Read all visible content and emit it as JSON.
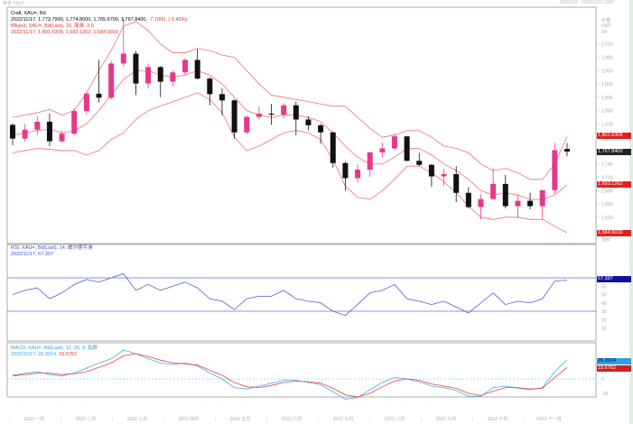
{
  "header": {
    "title": "黄金 XAU=",
    "range": "2022/1/3 - 2022/11/17 GMT"
  },
  "legend": {
    "cndl_name": "Cndl, XAU=, Bd",
    "cndl_values": "2022/11/17, 1,773.7900, 1,774.8000, 1,765.6700, 1,767.8400,",
    "cndl_change": "-7.1000, (-0.40%)",
    "bband_name": "BBand, XAU=, Bd(Last), 20, 简单, 2.0",
    "bband_values": "2022/11/17, 1,801.6309, 1,693.1262, 1,584.9016",
    "rsi_name": "RSI, XAU=, Bd(Last), 14, 威尔德平滑",
    "rsi_values": "2022/11/17, 67.397",
    "macd_name": "MACD, XAU=, Bd(Last), 12, 26, 9, 指数",
    "macd_value": "2022/11/17, 26.3914,",
    "macd_signal": "15.6762"
  },
  "axis": {
    "price_unit": "价格",
    "currency": "USD",
    "per": "Oz",
    "indicator_label": "指标"
  },
  "badges": {
    "upper": "1,801.6309",
    "last": "1,767.8400",
    "mid": "1,693.1262",
    "lower": "1,584.9016",
    "rsi": "67.397",
    "macd": "26.3914",
    "signal": "15.6762"
  },
  "colors": {
    "up": "#e8388a",
    "down": "#111111",
    "band": "#f07070",
    "rsi": "#5060d0",
    "macd": "#40b0f0",
    "signal": "#f04040",
    "rsi_badge": "#1010a0"
  },
  "chart_data": [
    {
      "type": "candlestick",
      "title": "Cndl, XAU=, Bd",
      "x_labels": [
        "2022 一月",
        "2022 二月",
        "2022 三月",
        "2022 四月",
        "2022 五月",
        "2022 六月",
        "2022 七月",
        "2022 八月",
        "2022 九月",
        "2022 十月",
        "2022 十一月"
      ],
      "y_ticks": [
        2010,
        1980,
        1950,
        1920,
        1890,
        1860,
        1830,
        1740,
        1710,
        1680,
        1650,
        1620
      ],
      "ylim": [
        1570,
        2090
      ],
      "ohlc": [
        [
          1828,
          1831,
          1782,
          1797
        ],
        [
          1797,
          1830,
          1790,
          1817
        ],
        [
          1817,
          1848,
          1805,
          1835
        ],
        [
          1835,
          1853,
          1780,
          1791
        ],
        [
          1791,
          1815,
          1788,
          1808
        ],
        [
          1808,
          1865,
          1805,
          1859
        ],
        [
          1859,
          1902,
          1850,
          1898
        ],
        [
          1898,
          1974,
          1878,
          1889
        ],
        [
          1889,
          1972,
          1885,
          1966
        ],
        [
          1966,
          2070,
          1960,
          1988
        ],
        [
          1988,
          1994,
          1895,
          1921
        ],
        [
          1921,
          1966,
          1910,
          1958
        ],
        [
          1958,
          1960,
          1890,
          1925
        ],
        [
          1925,
          1950,
          1915,
          1946
        ],
        [
          1946,
          1978,
          1940,
          1974
        ],
        [
          1974,
          1998,
          1930,
          1932
        ],
        [
          1932,
          1935,
          1872,
          1897
        ],
        [
          1897,
          1910,
          1850,
          1883
        ],
        [
          1883,
          1885,
          1797,
          1811
        ],
        [
          1811,
          1849,
          1807,
          1846
        ],
        [
          1846,
          1870,
          1840,
          1853
        ],
        [
          1853,
          1875,
          1828,
          1851
        ],
        [
          1851,
          1877,
          1843,
          1872
        ],
        [
          1872,
          1880,
          1805,
          1840
        ],
        [
          1840,
          1847,
          1815,
          1827
        ],
        [
          1827,
          1830,
          1785,
          1811
        ],
        [
          1811,
          1813,
          1732,
          1742
        ],
        [
          1742,
          1745,
          1680,
          1708
        ],
        [
          1708,
          1739,
          1698,
          1727
        ],
        [
          1727,
          1767,
          1711,
          1766
        ],
        [
          1766,
          1788,
          1754,
          1775
        ],
        [
          1775,
          1808,
          1772,
          1802
        ],
        [
          1802,
          1803,
          1746,
          1747
        ],
        [
          1747,
          1765,
          1735,
          1738
        ],
        [
          1738,
          1740,
          1688,
          1712
        ],
        [
          1712,
          1729,
          1691,
          1717
        ],
        [
          1717,
          1735,
          1654,
          1675
        ],
        [
          1675,
          1688,
          1640,
          1643
        ],
        [
          1643,
          1672,
          1615,
          1661
        ],
        [
          1661,
          1730,
          1659,
          1695
        ],
        [
          1695,
          1715,
          1640,
          1645
        ],
        [
          1645,
          1670,
          1618,
          1657
        ],
        [
          1657,
          1675,
          1638,
          1645
        ],
        [
          1645,
          1681,
          1616,
          1681
        ],
        [
          1681,
          1787,
          1673,
          1771
        ],
        [
          1773.79,
          1787,
          1757,
          1767.84
        ]
      ],
      "bband_mid": [
        1805,
        1810,
        1815,
        1818,
        1810,
        1815,
        1830,
        1860,
        1895,
        1930,
        1950,
        1950,
        1940,
        1935,
        1940,
        1950,
        1940,
        1920,
        1890,
        1860,
        1850,
        1845,
        1850,
        1850,
        1845,
        1835,
        1810,
        1780,
        1755,
        1740,
        1740,
        1755,
        1775,
        1775,
        1760,
        1740,
        1725,
        1705,
        1680,
        1670,
        1675,
        1670,
        1660,
        1660,
        1670,
        1693.13
      ],
      "bband_upper": [
        1845,
        1850,
        1855,
        1863,
        1850,
        1860,
        1900,
        1950,
        1995,
        2050,
        2060,
        2040,
        2010,
        1990,
        1990,
        2000,
        1995,
        1985,
        1980,
        1950,
        1920,
        1895,
        1890,
        1885,
        1880,
        1875,
        1870,
        1870,
        1845,
        1820,
        1800,
        1805,
        1815,
        1815,
        1800,
        1780,
        1775,
        1765,
        1740,
        1725,
        1730,
        1720,
        1705,
        1705,
        1740,
        1801.63
      ],
      "bband_lower": [
        1765,
        1770,
        1775,
        1773,
        1770,
        1770,
        1760,
        1770,
        1795,
        1810,
        1840,
        1860,
        1870,
        1880,
        1890,
        1900,
        1885,
        1855,
        1800,
        1770,
        1780,
        1795,
        1810,
        1815,
        1810,
        1795,
        1750,
        1690,
        1665,
        1660,
        1680,
        1705,
        1735,
        1735,
        1720,
        1700,
        1675,
        1645,
        1620,
        1615,
        1620,
        1620,
        1615,
        1615,
        1600,
        1584.9
      ]
    },
    {
      "type": "line",
      "title": "RSI, XAU=, Bd(Last), 14",
      "y_ticks": [
        60,
        50,
        40,
        30,
        20,
        10
      ],
      "levels": [
        70,
        30
      ],
      "ylim": [
        0,
        90
      ],
      "values": [
        50,
        55,
        58,
        45,
        52,
        62,
        68,
        65,
        70,
        75,
        55,
        62,
        55,
        60,
        65,
        58,
        45,
        42,
        32,
        45,
        48,
        48,
        55,
        45,
        42,
        40,
        30,
        25,
        38,
        52,
        55,
        62,
        45,
        42,
        38,
        42,
        35,
        28,
        40,
        52,
        38,
        42,
        40,
        45,
        66,
        67.397
      ]
    },
    {
      "type": "line",
      "title": "MACD, XAU=, Bd(Last), 12, 26, 9",
      "y_ticks": [
        0,
        -20
      ],
      "ylim": [
        -30,
        48
      ],
      "series": [
        {
          "name": "MACD",
          "values": [
            5,
            8,
            10,
            6,
            4,
            8,
            15,
            22,
            28,
            40,
            35,
            28,
            22,
            20,
            22,
            18,
            8,
            0,
            -12,
            -14,
            -10,
            -6,
            -2,
            -2,
            -5,
            -8,
            -18,
            -28,
            -26,
            -15,
            -5,
            2,
            0,
            -4,
            -10,
            -12,
            -16,
            -24,
            -24,
            -12,
            -10,
            -13,
            -15,
            -12,
            10,
            26.39
          ]
        },
        {
          "name": "Signal",
          "values": [
            4,
            6,
            8,
            8,
            6,
            7,
            10,
            16,
            22,
            32,
            35,
            31,
            26,
            22,
            21,
            19,
            12,
            5,
            -5,
            -11,
            -12,
            -9,
            -5,
            -3,
            -4,
            -6,
            -13,
            -22,
            -25,
            -20,
            -11,
            -3,
            0,
            -2,
            -7,
            -10,
            -13,
            -20,
            -23,
            -17,
            -12,
            -12,
            -14,
            -13,
            2,
            15.68
          ]
        }
      ]
    }
  ]
}
